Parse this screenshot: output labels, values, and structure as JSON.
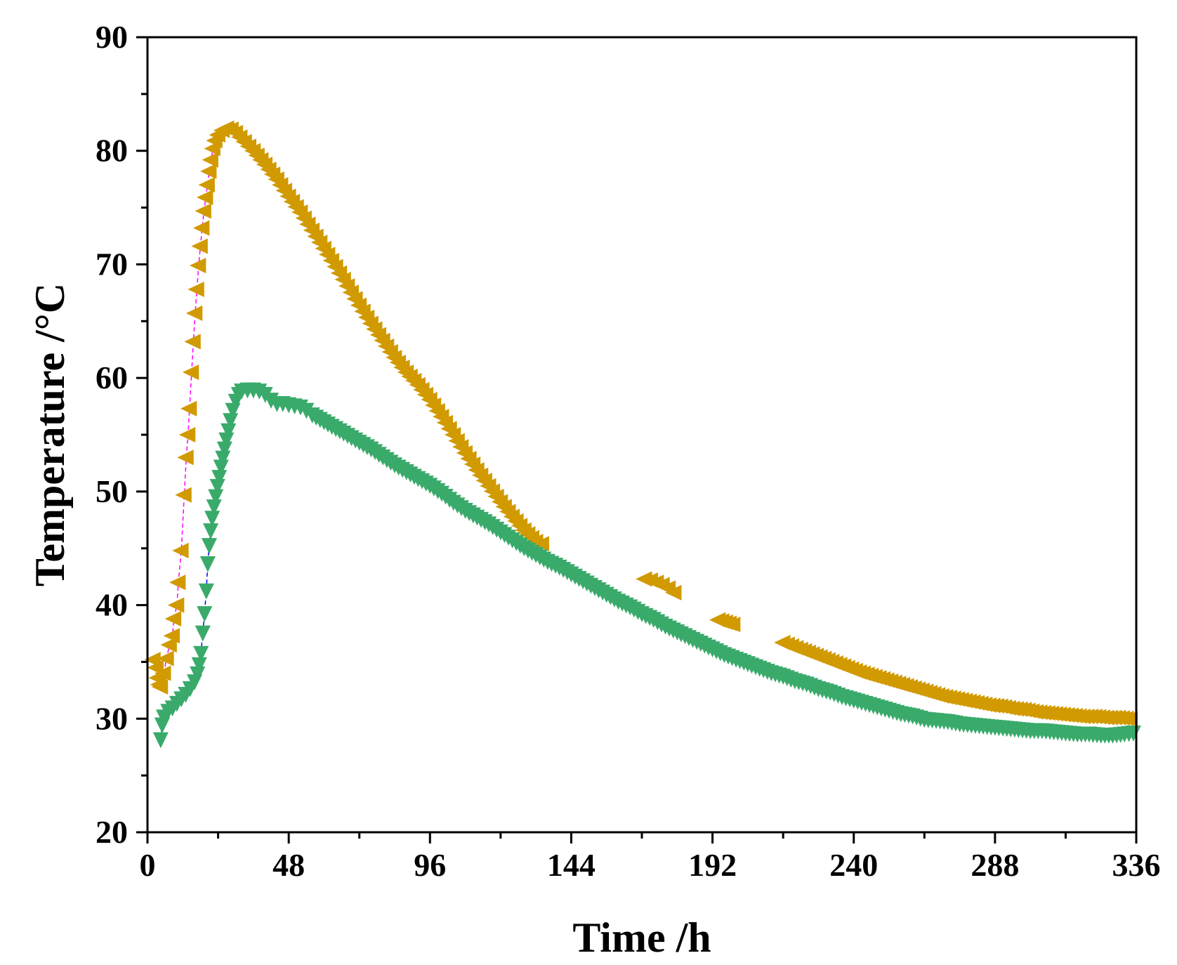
{
  "chart_data": {
    "type": "scatter",
    "title": "",
    "xlabel": "Time /h",
    "ylabel": "Temperature /°C",
    "xlim": [
      0,
      336
    ],
    "ylim": [
      20,
      90
    ],
    "xticks": [
      0,
      48,
      96,
      144,
      192,
      240,
      288,
      336
    ],
    "xtick_labels": [
      "0",
      "48",
      "96",
      "144",
      "192",
      "240",
      "288",
      "336"
    ],
    "yticks": [
      20,
      30,
      40,
      50,
      60,
      70,
      80,
      90
    ],
    "ytick_labels": [
      "20",
      "30",
      "40",
      "50",
      "60",
      "70",
      "80",
      "90"
    ],
    "grid": false,
    "legend": "none",
    "series": [
      {
        "name": "series-1",
        "marker": "left-triangle",
        "color": "#d19a00",
        "line_color": "#ff00ff",
        "points": [
          [
            2,
            35.2
          ],
          [
            3,
            34.5
          ],
          [
            3.5,
            33.6
          ],
          [
            4,
            33.0
          ],
          [
            4.5,
            32.8
          ],
          [
            5.5,
            34.0
          ],
          [
            6.5,
            35.3
          ],
          [
            7.5,
            36.5
          ],
          [
            8.5,
            37.3
          ],
          [
            9,
            38.8
          ],
          [
            10,
            40.0
          ],
          [
            10.5,
            42.0
          ],
          [
            11.5,
            44.8
          ],
          [
            12.5,
            49.7
          ],
          [
            13.2,
            53.0
          ],
          [
            13.8,
            55.0
          ],
          [
            14.3,
            57.3
          ],
          [
            15,
            60.5
          ],
          [
            15.6,
            63.2
          ],
          [
            16.2,
            65.7
          ],
          [
            16.8,
            67.8
          ],
          [
            17.4,
            69.9
          ],
          [
            18,
            71.6
          ],
          [
            18.6,
            73.2
          ],
          [
            19.2,
            74.7
          ],
          [
            19.8,
            75.9
          ],
          [
            20.4,
            77.0
          ],
          [
            21,
            78.2
          ],
          [
            21.6,
            79.2
          ],
          [
            22.3,
            80.2
          ],
          [
            23,
            80.9
          ],
          [
            24,
            81.4
          ],
          [
            25.5,
            81.8
          ],
          [
            27,
            82.0
          ],
          [
            28.5,
            81.9
          ],
          [
            30,
            81.6
          ],
          [
            33,
            80.8
          ],
          [
            36,
            80.0
          ],
          [
            40,
            78.8
          ],
          [
            44,
            77.5
          ],
          [
            48,
            76.0
          ],
          [
            52,
            74.6
          ],
          [
            56,
            73.0
          ],
          [
            60,
            71.4
          ],
          [
            64,
            69.8
          ],
          [
            68,
            68.1
          ],
          [
            72,
            66.4
          ],
          [
            76,
            64.8
          ],
          [
            80,
            63.3
          ],
          [
            84,
            61.8
          ],
          [
            88,
            60.5
          ],
          [
            92,
            59.4
          ],
          [
            96,
            58.1
          ],
          [
            100,
            56.6
          ],
          [
            104,
            55.0
          ],
          [
            108,
            53.4
          ],
          [
            112,
            51.9
          ],
          [
            116,
            50.5
          ],
          [
            120,
            49.1
          ],
          [
            124,
            47.8
          ],
          [
            128,
            46.6
          ],
          [
            132,
            45.6
          ],
          [
            134,
            45.4
          ],
          [
            169,
            42.3
          ],
          [
            171,
            42.2
          ],
          [
            173,
            42.0
          ],
          [
            175,
            41.8
          ],
          [
            177,
            41.5
          ],
          [
            179,
            41.1
          ],
          [
            194,
            38.7
          ],
          [
            199,
            38.3
          ],
          [
            216,
            36.7
          ],
          [
            219,
            36.4
          ],
          [
            222,
            36.1
          ],
          [
            226,
            35.7
          ],
          [
            230,
            35.3
          ],
          [
            234,
            34.9
          ],
          [
            238,
            34.5
          ],
          [
            242,
            34.1
          ],
          [
            246,
            33.8
          ],
          [
            250,
            33.5
          ],
          [
            254,
            33.2
          ],
          [
            258,
            32.9
          ],
          [
            262,
            32.6
          ],
          [
            266,
            32.3
          ],
          [
            270,
            32.0
          ],
          [
            274,
            31.8
          ],
          [
            278,
            31.6
          ],
          [
            282,
            31.4
          ],
          [
            286,
            31.2
          ],
          [
            290,
            31.1
          ],
          [
            294,
            30.9
          ],
          [
            298,
            30.8
          ],
          [
            302,
            30.6
          ],
          [
            306,
            30.5
          ],
          [
            310,
            30.4
          ],
          [
            314,
            30.3
          ],
          [
            318,
            30.2
          ],
          [
            322,
            30.2
          ],
          [
            326,
            30.1
          ],
          [
            330,
            30.1
          ],
          [
            334,
            30.0
          ]
        ]
      },
      {
        "name": "series-2",
        "marker": "down-triangle",
        "color": "#3aaa6b",
        "line_color": "#0000ff",
        "points": [
          [
            4.5,
            28.2
          ],
          [
            5,
            29.5
          ],
          [
            5.5,
            30.2
          ],
          [
            7,
            30.7
          ],
          [
            8.5,
            31.0
          ],
          [
            10,
            31.4
          ],
          [
            11.5,
            31.8
          ],
          [
            13,
            32.2
          ],
          [
            14.5,
            32.7
          ],
          [
            16,
            33.3
          ],
          [
            17,
            34.0
          ],
          [
            17.6,
            34.8
          ],
          [
            18.2,
            35.8
          ],
          [
            18.8,
            37.6
          ],
          [
            19.4,
            39.3
          ],
          [
            20,
            41.3
          ],
          [
            20.5,
            43.7
          ],
          [
            21,
            45.3
          ],
          [
            21.5,
            46.6
          ],
          [
            22,
            47.7
          ],
          [
            22.6,
            48.7
          ],
          [
            23.2,
            49.6
          ],
          [
            23.8,
            50.5
          ],
          [
            24.4,
            51.3
          ],
          [
            25,
            52.2
          ],
          [
            25.6,
            53.0
          ],
          [
            26.2,
            53.8
          ],
          [
            26.8,
            54.6
          ],
          [
            27.5,
            55.4
          ],
          [
            28.2,
            56.3
          ],
          [
            29,
            57.2
          ],
          [
            30,
            58.0
          ],
          [
            31,
            58.6
          ],
          [
            32,
            58.9
          ],
          [
            34,
            59.0
          ],
          [
            36,
            59.0
          ],
          [
            38,
            58.9
          ],
          [
            40,
            58.6
          ],
          [
            42,
            58.1
          ],
          [
            44,
            57.8
          ],
          [
            46,
            57.8
          ],
          [
            48,
            57.7
          ],
          [
            50,
            57.6
          ],
          [
            52,
            57.5
          ],
          [
            54,
            57.2
          ],
          [
            56,
            56.8
          ],
          [
            60,
            56.2
          ],
          [
            64,
            55.6
          ],
          [
            68,
            55.0
          ],
          [
            72,
            54.4
          ],
          [
            76,
            53.8
          ],
          [
            80,
            53.1
          ],
          [
            84,
            52.4
          ],
          [
            88,
            51.8
          ],
          [
            92,
            51.2
          ],
          [
            96,
            50.6
          ],
          [
            100,
            49.9
          ],
          [
            104,
            49.1
          ],
          [
            108,
            48.4
          ],
          [
            112,
            47.8
          ],
          [
            116,
            47.2
          ],
          [
            120,
            46.5
          ],
          [
            124,
            45.8
          ],
          [
            128,
            45.1
          ],
          [
            132,
            44.5
          ],
          [
            136,
            43.9
          ],
          [
            140,
            43.4
          ],
          [
            144,
            42.8
          ],
          [
            148,
            42.2
          ],
          [
            152,
            41.6
          ],
          [
            156,
            41.0
          ],
          [
            160,
            40.4
          ],
          [
            164,
            39.9
          ],
          [
            168,
            39.3
          ],
          [
            172,
            38.8
          ],
          [
            176,
            38.2
          ],
          [
            180,
            37.7
          ],
          [
            184,
            37.2
          ],
          [
            188,
            36.7
          ],
          [
            192,
            36.2
          ],
          [
            196,
            35.7
          ],
          [
            200,
            35.3
          ],
          [
            204,
            34.9
          ],
          [
            208,
            34.5
          ],
          [
            212,
            34.1
          ],
          [
            216,
            33.8
          ],
          [
            220,
            33.4
          ],
          [
            224,
            33.1
          ],
          [
            228,
            32.7
          ],
          [
            232,
            32.4
          ],
          [
            236,
            32.0
          ],
          [
            240,
            31.7
          ],
          [
            244,
            31.4
          ],
          [
            248,
            31.1
          ],
          [
            252,
            30.8
          ],
          [
            256,
            30.5
          ],
          [
            260,
            30.3
          ],
          [
            264,
            30.0
          ],
          [
            268,
            29.9
          ],
          [
            272,
            29.8
          ],
          [
            276,
            29.6
          ],
          [
            280,
            29.5
          ],
          [
            284,
            29.4
          ],
          [
            288,
            29.3
          ],
          [
            292,
            29.2
          ],
          [
            296,
            29.1
          ],
          [
            300,
            29.0
          ],
          [
            304,
            29.0
          ],
          [
            308,
            28.9
          ],
          [
            312,
            28.8
          ],
          [
            316,
            28.7
          ],
          [
            320,
            28.7
          ],
          [
            324,
            28.6
          ],
          [
            328,
            28.6
          ],
          [
            332,
            28.7
          ],
          [
            335,
            28.8
          ]
        ]
      }
    ]
  }
}
